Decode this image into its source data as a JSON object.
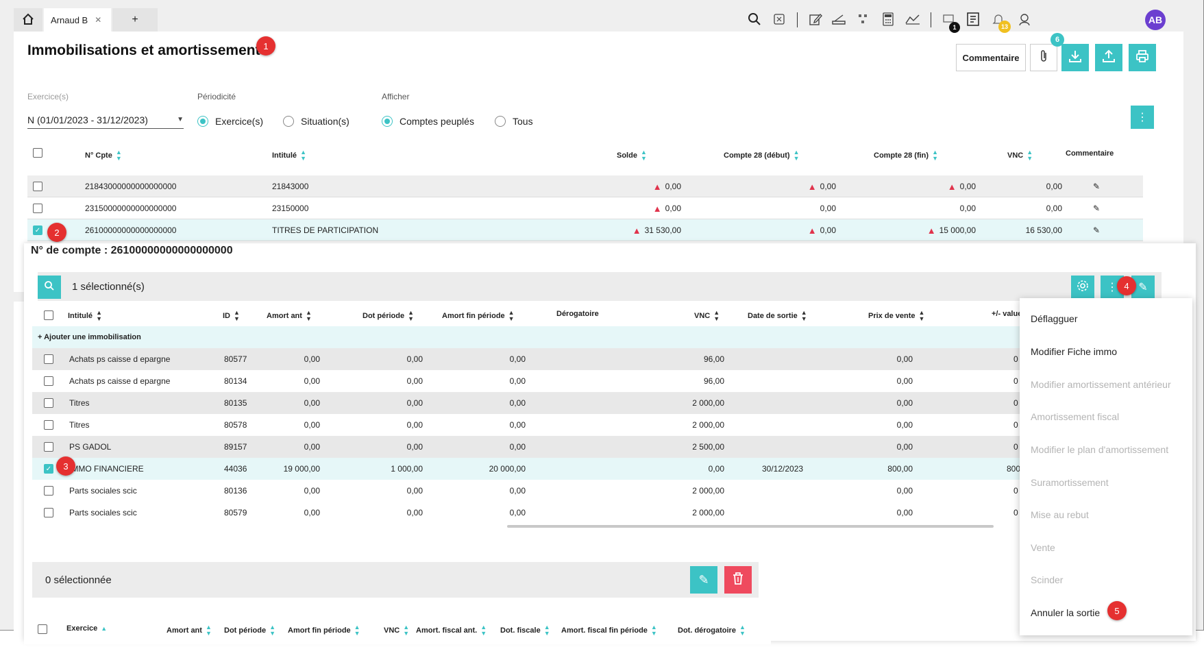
{
  "tabs": {
    "home_icon": "home-icon",
    "user_tab_label": "Arnaud B",
    "close_glyph": "✕",
    "add_label": "+"
  },
  "toolbar_icons": [
    "search-icon",
    "calculator-icon",
    "edit-icon",
    "scanner-icon",
    "org-chart-icon",
    "calc-grid-icon",
    "chart-icon",
    "monitor-icon",
    "checklist-icon",
    "bell-icon",
    "support-icon"
  ],
  "notifications": {
    "monitor_badge": "1",
    "bell_badge": "13"
  },
  "user": {
    "initials": "AB"
  },
  "page": {
    "title": "Immobilisations et amortissements",
    "comment_button": "Commentaire",
    "attachment_count": "6"
  },
  "filters": {
    "exercice_label": "Exercice(s)",
    "exercice_value": "N (01/01/2023 - 31/12/2023)",
    "periodicite_label": "Périodicité",
    "periodicite_options": [
      "Exercice(s)",
      "Situation(s)"
    ],
    "periodicite_selected": "Exercice(s)",
    "afficher_label": "Afficher",
    "afficher_options": [
      "Comptes peuplés",
      "Tous"
    ],
    "afficher_selected": "Comptes peuplés"
  },
  "accounts_table": {
    "headers": [
      "N° Cpte",
      "Intitulé",
      "Solde",
      "Compte 28 (début)",
      "Compte 28 (fin)",
      "VNC",
      "Commentaire"
    ],
    "rows": [
      {
        "num": "21843000000000000000",
        "label": "21843000",
        "solde": "0,00",
        "c28_debut": "0,00",
        "c28_fin": "0,00",
        "vnc": "0,00",
        "checked": false
      },
      {
        "num": "23150000000000000000",
        "label": "23150000",
        "solde": "0,00",
        "c28_debut": "0,00",
        "c28_fin": "0,00",
        "vnc": "0,00",
        "checked": false
      },
      {
        "num": "26100000000000000000",
        "label": "TITRES DE PARTICIPATION",
        "solde": "31 530,00",
        "c28_debut": "0,00",
        "c28_fin": "15 000,00",
        "vnc": "16 530,00",
        "checked": true
      }
    ]
  },
  "detail": {
    "title": "N° de compte : 26100000000000000000",
    "selected_count": "1 sélectionné(s)",
    "headers": [
      "Intitulé",
      "ID",
      "Amort ant",
      "Dot période",
      "Amort fin période",
      "Dérogatoire",
      "VNC",
      "Date de sortie",
      "Prix de vente",
      "+/- value"
    ],
    "add_link": "+ Ajouter une immobilisation",
    "rows": [
      {
        "label": "Achats ps caisse d epargne",
        "id": "80577",
        "amort_ant": "0,00",
        "dot": "0,00",
        "amort_fin": "0,00",
        "vnc": "96,00",
        "date_sortie": "",
        "prix": "0,00",
        "pv": "0",
        "checked": false
      },
      {
        "label": "Achats ps caisse d epargne",
        "id": "80134",
        "amort_ant": "0,00",
        "dot": "0,00",
        "amort_fin": "0,00",
        "vnc": "96,00",
        "date_sortie": "",
        "prix": "0,00",
        "pv": "0",
        "checked": false
      },
      {
        "label": "Titres",
        "id": "80135",
        "amort_ant": "0,00",
        "dot": "0,00",
        "amort_fin": "0,00",
        "vnc": "2 000,00",
        "date_sortie": "",
        "prix": "0,00",
        "pv": "0",
        "checked": false
      },
      {
        "label": "Titres",
        "id": "80578",
        "amort_ant": "0,00",
        "dot": "0,00",
        "amort_fin": "0,00",
        "vnc": "2 000,00",
        "date_sortie": "",
        "prix": "0,00",
        "pv": "0",
        "checked": false
      },
      {
        "label": "PS GADOL",
        "id": "89157",
        "amort_ant": "0,00",
        "dot": "0,00",
        "amort_fin": "0,00",
        "vnc": "2 500,00",
        "date_sortie": "",
        "prix": "0,00",
        "pv": "0",
        "checked": false
      },
      {
        "label": "IMMO FINANCIERE",
        "id": "44036",
        "amort_ant": "19 000,00",
        "dot": "1 000,00",
        "amort_fin": "20 000,00",
        "vnc": "0,00",
        "date_sortie": "30/12/2023",
        "prix": "800,00",
        "pv": "800",
        "checked": true
      },
      {
        "label": "Parts sociales scic",
        "id": "80136",
        "amort_ant": "0,00",
        "dot": "0,00",
        "amort_fin": "0,00",
        "vnc": "2 000,00",
        "date_sortie": "",
        "prix": "0,00",
        "pv": "0",
        "checked": false
      },
      {
        "label": "Parts sociales scic",
        "id": "80579",
        "amort_ant": "0,00",
        "dot": "0,00",
        "amort_fin": "0,00",
        "vnc": "2 000,00",
        "date_sortie": "",
        "prix": "0,00",
        "pv": "0",
        "checked": false
      }
    ]
  },
  "context_menu": {
    "items": [
      {
        "label": "Déflagguer",
        "enabled": true
      },
      {
        "label": "Modifier Fiche immo",
        "enabled": true
      },
      {
        "label": "Modifier amortissement antérieur",
        "enabled": false
      },
      {
        "label": "Amortissement fiscal",
        "enabled": false
      },
      {
        "label": "Modifier le plan d'amortissement",
        "enabled": false
      },
      {
        "label": "Suramortissement",
        "enabled": false
      },
      {
        "label": "Mise au rebut",
        "enabled": false
      },
      {
        "label": "Vente",
        "enabled": false
      },
      {
        "label": "Scinder",
        "enabled": false
      },
      {
        "label": "Annuler la sortie",
        "enabled": true
      }
    ]
  },
  "bottom": {
    "selected_count": "0 sélectionnée",
    "headers": [
      "Exercice",
      "Amort ant",
      "Dot période",
      "Amort fin période",
      "VNC",
      "Amort. fiscal ant.",
      "Dot. fiscale",
      "Amort. fiscal fin période",
      "Dot. dérogatoire"
    ]
  },
  "markers": [
    "1",
    "2",
    "3",
    "4",
    "5"
  ],
  "colors": {
    "accent": "#3cc3c5",
    "danger": "#ef4a5e",
    "marker": "#e53030",
    "avatar": "#6b3fd0"
  }
}
